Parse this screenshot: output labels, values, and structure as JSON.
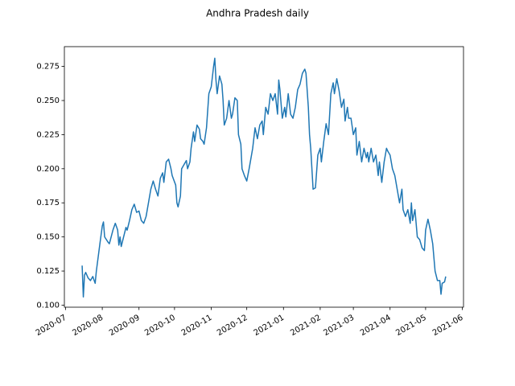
{
  "chart_data": {
    "type": "line",
    "title": "Andhra Pradesh daily",
    "color": "#1f77b4",
    "x": [
      18458,
      18459,
      18460,
      18461,
      18463,
      18465,
      18467,
      18469,
      18470,
      18473,
      18475,
      18476,
      18477,
      18480,
      18481,
      18484,
      18486,
      18488,
      18489,
      18490,
      18491,
      18493,
      18495,
      18496,
      18498,
      18500,
      18502,
      18504,
      18506,
      18508,
      18510,
      18512,
      18514,
      18516,
      18518,
      18520,
      18522,
      18524,
      18526,
      18527,
      18529,
      18531,
      18533,
      18534,
      18537,
      18538,
      18539,
      18541,
      18542,
      18544,
      18546,
      18547,
      18549,
      18550,
      18552,
      18553,
      18555,
      18557,
      18558,
      18560,
      18561,
      18563,
      18565,
      18567,
      18569,
      18570,
      18571,
      18572,
      18574,
      18576,
      18577,
      18578,
      18580,
      18582,
      18584,
      18585,
      18587,
      18589,
      18590,
      18592,
      18593,
      18595,
      18597,
      18599,
      18601,
      18602,
      18604,
      18606,
      18608,
      18610,
      18611,
      18613,
      18615,
      18617,
      18619,
      18621,
      18623,
      18624,
      18625,
      18627,
      18629,
      18630,
      18632,
      18634,
      18636,
      18638,
      18640,
      18642,
      18644,
      18646,
      18647,
      18649,
      18650,
      18651,
      18653,
      18655,
      18657,
      18659,
      18660,
      18662,
      18664,
      18666,
      18668,
      18670,
      18671,
      18673,
      18675,
      18677,
      18679,
      18680,
      18682,
      18683,
      18685,
      18687,
      18689,
      18690,
      18692,
      18694,
      18696,
      18698,
      18699,
      18700,
      18702,
      18704,
      18706,
      18708,
      18709,
      18711,
      18713,
      18715,
      18716,
      18718,
      18720,
      18722,
      18724,
      18726,
      18728,
      18729,
      18731,
      18733,
      18735,
      18736,
      18737,
      18739,
      18741,
      18743,
      18745,
      18747,
      18748,
      18750,
      18752,
      18754,
      18755,
      18756,
      18758,
      18760,
      18761,
      18762,
      18764,
      18765
    ],
    "values": [
      0.129,
      0.106,
      0.122,
      0.124,
      0.12,
      0.118,
      0.121,
      0.116,
      0.125,
      0.145,
      0.158,
      0.161,
      0.15,
      0.146,
      0.145,
      0.155,
      0.16,
      0.155,
      0.144,
      0.15,
      0.143,
      0.15,
      0.157,
      0.155,
      0.162,
      0.17,
      0.174,
      0.168,
      0.169,
      0.162,
      0.16,
      0.165,
      0.175,
      0.185,
      0.191,
      0.185,
      0.18,
      0.193,
      0.197,
      0.19,
      0.205,
      0.207,
      0.2,
      0.195,
      0.188,
      0.175,
      0.172,
      0.18,
      0.2,
      0.203,
      0.206,
      0.2,
      0.205,
      0.215,
      0.227,
      0.22,
      0.232,
      0.229,
      0.222,
      0.22,
      0.218,
      0.23,
      0.255,
      0.26,
      0.275,
      0.281,
      0.265,
      0.255,
      0.268,
      0.262,
      0.25,
      0.232,
      0.237,
      0.25,
      0.237,
      0.24,
      0.252,
      0.25,
      0.225,
      0.218,
      0.2,
      0.195,
      0.191,
      0.2,
      0.21,
      0.215,
      0.23,
      0.222,
      0.232,
      0.235,
      0.225,
      0.245,
      0.24,
      0.255,
      0.25,
      0.255,
      0.24,
      0.265,
      0.258,
      0.237,
      0.245,
      0.238,
      0.255,
      0.24,
      0.237,
      0.245,
      0.258,
      0.262,
      0.27,
      0.273,
      0.27,
      0.245,
      0.225,
      0.215,
      0.185,
      0.186,
      0.21,
      0.215,
      0.205,
      0.22,
      0.233,
      0.225,
      0.255,
      0.263,
      0.255,
      0.266,
      0.257,
      0.245,
      0.251,
      0.235,
      0.245,
      0.237,
      0.237,
      0.225,
      0.23,
      0.21,
      0.22,
      0.205,
      0.215,
      0.208,
      0.212,
      0.205,
      0.215,
      0.205,
      0.21,
      0.195,
      0.205,
      0.19,
      0.205,
      0.215,
      0.213,
      0.21,
      0.2,
      0.195,
      0.185,
      0.175,
      0.185,
      0.17,
      0.165,
      0.17,
      0.16,
      0.175,
      0.162,
      0.17,
      0.15,
      0.148,
      0.142,
      0.14,
      0.155,
      0.163,
      0.155,
      0.145,
      0.135,
      0.125,
      0.118,
      0.118,
      0.108,
      0.116,
      0.117,
      0.121
    ],
    "xlim": [
      18443,
      18780
    ],
    "xticks": [
      {
        "value": 18444,
        "label": "2020-07"
      },
      {
        "value": 18475,
        "label": "2020-08"
      },
      {
        "value": 18506,
        "label": "2020-09"
      },
      {
        "value": 18536,
        "label": "2020-10"
      },
      {
        "value": 18567,
        "label": "2020-11"
      },
      {
        "value": 18597,
        "label": "2020-12"
      },
      {
        "value": 18628,
        "label": "2021-01"
      },
      {
        "value": 18659,
        "label": "2021-02"
      },
      {
        "value": 18687,
        "label": "2021-03"
      },
      {
        "value": 18718,
        "label": "2021-04"
      },
      {
        "value": 18748,
        "label": "2021-05"
      },
      {
        "value": 18779,
        "label": "2021-06"
      }
    ],
    "ylim": [
      0.0985,
      0.2895
    ],
    "yticks": [
      {
        "value": 0.1,
        "label": "0.100"
      },
      {
        "value": 0.125,
        "label": "0.125"
      },
      {
        "value": 0.15,
        "label": "0.150"
      },
      {
        "value": 0.175,
        "label": "0.175"
      },
      {
        "value": 0.2,
        "label": "0.200"
      },
      {
        "value": 0.225,
        "label": "0.225"
      },
      {
        "value": 0.25,
        "label": "0.250"
      },
      {
        "value": 0.275,
        "label": "0.275"
      }
    ]
  }
}
